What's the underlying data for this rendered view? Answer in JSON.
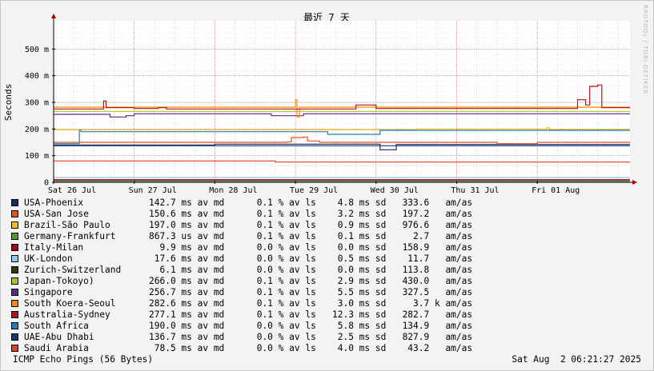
{
  "chart_data": {
    "type": "line",
    "title": "最近 7 天",
    "ylabel": "Seconds",
    "xlabel": "",
    "ylim": [
      0,
      0.6
    ],
    "yticks": [
      {
        "value": 0,
        "label": "0"
      },
      {
        "value": 0.1,
        "label": "100 m"
      },
      {
        "value": 0.2,
        "label": "200 m"
      },
      {
        "value": 0.3,
        "label": "300 m"
      },
      {
        "value": 0.4,
        "label": "400 m"
      },
      {
        "value": 0.5,
        "label": "500 m"
      }
    ],
    "xlim_days": [
      0,
      7.15
    ],
    "xticks": [
      {
        "day": 0,
        "label": "Sat 26 Jul"
      },
      {
        "day": 1,
        "label": "Sun 27 Jul"
      },
      {
        "day": 2,
        "label": "Mon 28 Jul"
      },
      {
        "day": 3,
        "label": "Tue 29 Jul"
      },
      {
        "day": 4,
        "label": "Wed 30 Jul"
      },
      {
        "day": 5,
        "label": "Thu 31 Jul"
      },
      {
        "day": 6,
        "label": "Fri 01 Aug"
      }
    ],
    "grid": true,
    "legend_position": "bottom",
    "series": [
      {
        "name": "USA-Phoenix",
        "color": "#0d2f6b",
        "stat": "142.7 ms av md      0.1 % av ls    4.8 ms sd   333.6   am/as",
        "points": [
          [
            0,
            0.14
          ],
          [
            0.7,
            0.14
          ],
          [
            2.0,
            0.143
          ],
          [
            4.0,
            0.143
          ],
          [
            4.05,
            0.122
          ],
          [
            4.2,
            0.122
          ],
          [
            4.25,
            0.142
          ],
          [
            7.15,
            0.142
          ]
        ]
      },
      {
        "name": "USA-San Jose",
        "color": "#e8521f",
        "stat": "150.6 ms av md      0.1 % av ls    3.2 ms sd   197.2   am/as",
        "points": [
          [
            0,
            0.15
          ],
          [
            1.5,
            0.15
          ],
          [
            2.9,
            0.152
          ],
          [
            2.95,
            0.168
          ],
          [
            3.1,
            0.17
          ],
          [
            3.15,
            0.155
          ],
          [
            3.3,
            0.15
          ],
          [
            5.4,
            0.15
          ],
          [
            5.5,
            0.145
          ],
          [
            6.0,
            0.15
          ],
          [
            7.15,
            0.15
          ]
        ]
      },
      {
        "name": "Brazil-São Paulo",
        "color": "#f2c100",
        "stat": "197.0 ms av md      0.1 % av ls    0.9 ms sd   976.6   am/as",
        "points": [
          [
            0,
            0.197
          ],
          [
            3.0,
            0.197
          ],
          [
            3.05,
            0.197
          ],
          [
            4.5,
            0.2
          ],
          [
            6.1,
            0.2
          ],
          [
            6.12,
            0.205
          ],
          [
            6.15,
            0.198
          ],
          [
            7.15,
            0.198
          ]
        ]
      },
      {
        "name": "Germany-Frankfurt",
        "color": "#4a9e2a",
        "stat": "867.3 us av md      0.1 % av ls    0.1 ms sd     2.7   am/as",
        "points": [
          [
            0,
            0.001
          ],
          [
            7.15,
            0.001
          ]
        ]
      },
      {
        "name": "Italy-Milan",
        "color": "#a4001d",
        "stat": "  9.9 ms av md      0.0 % av ls    0.0 ms sd   158.9   am/as",
        "points": [
          [
            0,
            0.01
          ],
          [
            7.15,
            0.01
          ]
        ]
      },
      {
        "name": "UK-London",
        "color": "#8ec9f0",
        "stat": " 17.6 ms av md      0.0 % av ls    0.5 ms sd    11.7   am/as",
        "points": [
          [
            0,
            0.0176
          ],
          [
            7.15,
            0.0176
          ]
        ]
      },
      {
        "name": "Zurich-Switzerland",
        "color": "#2f3b0f",
        "stat": "  6.1 ms av md      0.0 % av ls    0.0 ms sd   113.8   am/as",
        "points": [
          [
            0,
            0.006
          ],
          [
            7.15,
            0.006
          ]
        ]
      },
      {
        "name": "Japan-Tokoyo)",
        "color": "#a8c41c",
        "stat": "266.0 ms av md      0.1 % av ls    2.9 ms sd   430.0   am/as",
        "points": [
          [
            0,
            0.266
          ],
          [
            7.15,
            0.266
          ]
        ]
      },
      {
        "name": "Singapore",
        "color": "#5a2c8a",
        "stat": "256.7 ms av md      0.1 % av ls    5.5 ms sd   327.5   am/as",
        "points": [
          [
            0,
            0.255
          ],
          [
            0.6,
            0.255
          ],
          [
            0.7,
            0.245
          ],
          [
            0.9,
            0.25
          ],
          [
            1.0,
            0.257
          ],
          [
            2.6,
            0.257
          ],
          [
            2.7,
            0.25
          ],
          [
            3.0,
            0.25
          ],
          [
            3.1,
            0.257
          ],
          [
            7.15,
            0.257
          ]
        ]
      },
      {
        "name": "South Koera-Seoul",
        "color": "#ff8a00",
        "stat": "282.6 ms av md      0.1 % av ls    3.0 ms sd     3.7 k am/as",
        "points": [
          [
            0,
            0.282
          ],
          [
            2.0,
            0.282
          ],
          [
            2.95,
            0.282
          ],
          [
            3.0,
            0.31
          ],
          [
            3.02,
            0.245
          ],
          [
            3.05,
            0.282
          ],
          [
            7.15,
            0.282
          ]
        ]
      },
      {
        "name": "Australia-Sydney",
        "color": "#b5121b",
        "stat": "277.1 ms av md      0.1 % av ls   12.3 ms sd   282.7   am/as",
        "points": [
          [
            0,
            0.275
          ],
          [
            0.6,
            0.275
          ],
          [
            0.62,
            0.305
          ],
          [
            0.65,
            0.28
          ],
          [
            1.0,
            0.277
          ],
          [
            1.3,
            0.28
          ],
          [
            1.4,
            0.275
          ],
          [
            3.7,
            0.275
          ],
          [
            3.75,
            0.29
          ],
          [
            3.95,
            0.29
          ],
          [
            4.0,
            0.277
          ],
          [
            6.45,
            0.277
          ],
          [
            6.5,
            0.31
          ],
          [
            6.6,
            0.29
          ],
          [
            6.65,
            0.36
          ],
          [
            6.75,
            0.365
          ],
          [
            6.8,
            0.28
          ],
          [
            7.15,
            0.28
          ]
        ]
      },
      {
        "name": "South Africa",
        "color": "#1f7fbf",
        "stat": "190.0 ms av md      0.0 % av ls    5.8 ms sd   134.9   am/as",
        "points": [
          [
            0,
            0.145
          ],
          [
            0.3,
            0.145
          ],
          [
            0.32,
            0.195
          ],
          [
            0.34,
            0.19
          ],
          [
            3.35,
            0.19
          ],
          [
            3.4,
            0.18
          ],
          [
            4.0,
            0.18
          ],
          [
            4.05,
            0.195
          ],
          [
            7.15,
            0.195
          ]
        ]
      },
      {
        "name": "UAE-Abu Dhabi",
        "color": "#123d6e",
        "stat": "136.7 ms av md      0.0 % av ls    2.5 ms sd   827.9   am/as",
        "points": [
          [
            0,
            0.137
          ],
          [
            7.15,
            0.137
          ]
        ]
      },
      {
        "name": "Saudi Arabia",
        "color": "#e2401f",
        "stat": " 78.5 ms av md      0.0 % av ls    4.0 ms sd    43.2   am/as",
        "points": [
          [
            0,
            0.08
          ],
          [
            2.7,
            0.08
          ],
          [
            2.75,
            0.076
          ],
          [
            7.15,
            0.076
          ]
        ]
      }
    ]
  },
  "footer": {
    "probe": "ICMP Echo Pings (56 Bytes)",
    "timestamp": "Sat Aug  2 06:21:27 2025"
  },
  "watermark": "RRDTOOL / TOBI OETIKER"
}
